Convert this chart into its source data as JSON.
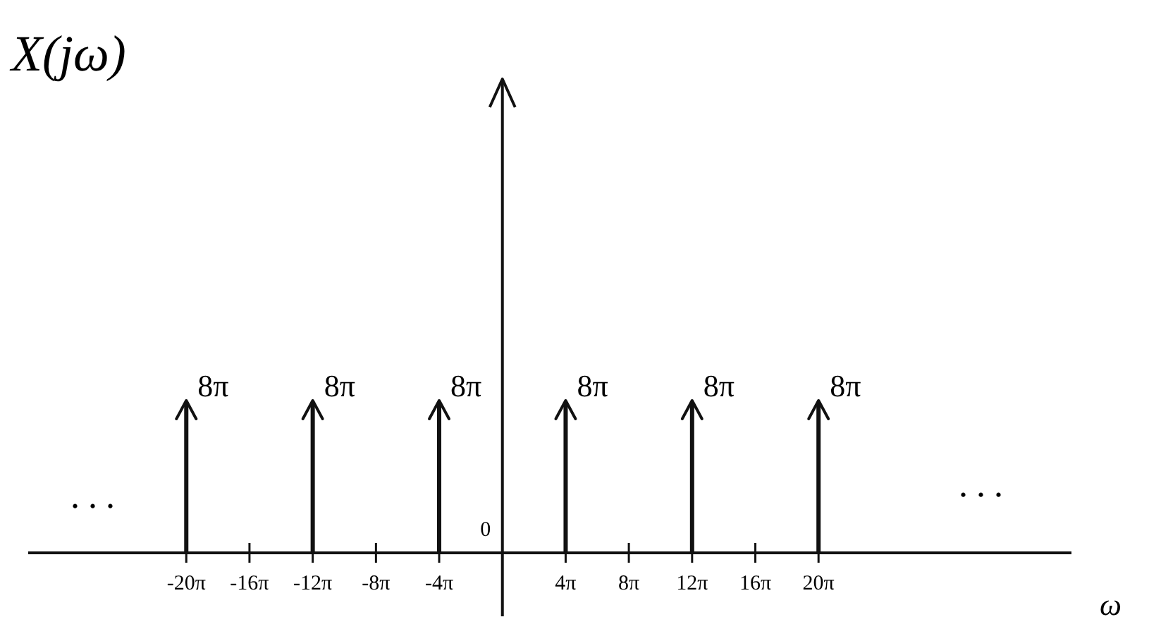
{
  "chart_data": {
    "type": "bar",
    "title": "X(jω)",
    "xlabel": "ω",
    "x": [
      -62.83,
      -37.7,
      -12.57,
      12.57,
      37.7,
      62.83
    ],
    "values": [
      25.13,
      25.13,
      25.13,
      25.13,
      25.13,
      25.13
    ],
    "value_labels": [
      "8π",
      "8π",
      "8π",
      "8π",
      "8π",
      "8π"
    ],
    "color": "#111111",
    "xlim": [
      -94.25,
      113.1
    ],
    "xticks": [
      {
        "value": -62.83,
        "label": "-20π"
      },
      {
        "value": -50.27,
        "label": "-16π"
      },
      {
        "value": -37.7,
        "label": "-12π"
      },
      {
        "value": -25.13,
        "label": "-8π"
      },
      {
        "value": -12.57,
        "label": "-4π"
      },
      {
        "value": 12.57,
        "label": "4π"
      },
      {
        "value": 25.13,
        "label": "8π"
      },
      {
        "value": 37.7,
        "label": "12π"
      },
      {
        "value": 50.27,
        "label": "16π"
      },
      {
        "value": 62.83,
        "label": "20π"
      }
    ],
    "annotations": [
      "...",
      "...",
      "0"
    ]
  }
}
